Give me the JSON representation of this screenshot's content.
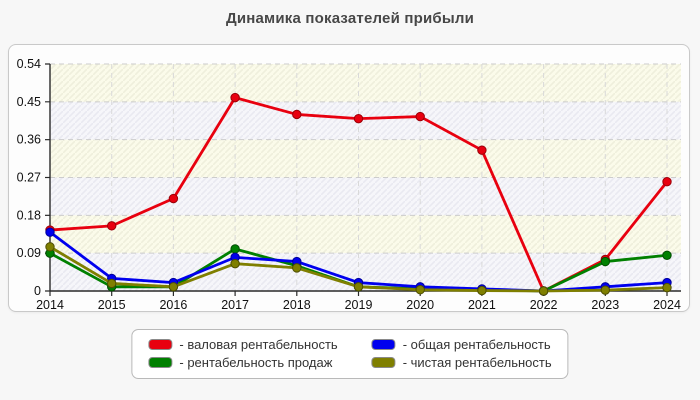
{
  "title": "Динамика показателей прибыли",
  "chart_data": {
    "type": "line",
    "x": [
      2014,
      2015,
      2016,
      2017,
      2018,
      2019,
      2020,
      2021,
      2022,
      2023,
      2024
    ],
    "series": [
      {
        "name": "валовая рентабельность",
        "color": "#e8000f",
        "marker_edge": "#9b0008",
        "values": [
          0.145,
          0.155,
          0.22,
          0.46,
          0.42,
          0.41,
          0.415,
          0.335,
          0.0,
          0.075,
          0.26
        ]
      },
      {
        "name": "рентабельность продаж",
        "color": "#008000",
        "marker_edge": "#004d00",
        "values": [
          0.09,
          0.01,
          0.01,
          0.1,
          0.06,
          0.01,
          0.005,
          0.003,
          0.0,
          0.07,
          0.085
        ]
      },
      {
        "name": "общая рентабельность",
        "color": "#0000ee",
        "marker_edge": "#000099",
        "values": [
          0.14,
          0.03,
          0.02,
          0.08,
          0.07,
          0.02,
          0.01,
          0.005,
          0.0,
          0.01,
          0.02
        ]
      },
      {
        "name": "чистая рентабельность",
        "color": "#7f7f00",
        "marker_edge": "#4d4d00",
        "values": [
          0.105,
          0.018,
          0.01,
          0.065,
          0.055,
          0.01,
          0.003,
          0.001,
          0.0,
          0.002,
          0.008
        ]
      }
    ],
    "title": "Динамика показателей прибыли",
    "xlabel": "",
    "ylabel": "",
    "ylim": [
      0,
      0.54
    ],
    "yticks": [
      0,
      0.09,
      0.18,
      0.27,
      0.36,
      0.45,
      0.54
    ],
    "ytick_labels": [
      "0",
      "0.09",
      "0.18",
      "0.27",
      "0.36",
      "0.45",
      "0.54"
    ],
    "xtick_labels": [
      "2014",
      "2015",
      "2016",
      "2017",
      "2018",
      "2019",
      "2020",
      "2021",
      "2022",
      "2023",
      "2024"
    ],
    "grid": true,
    "grid_style": "dashed",
    "legend_position": "bottom",
    "plot_band_colors": [
      "#fbfbea",
      "#f6f6fa"
    ],
    "plot_band_hatch_colors": [
      "#efefdc",
      "#e9e9f1"
    ]
  },
  "legend": {
    "items": [
      {
        "label": "- валовая рентабельность",
        "color": "#e8000f"
      },
      {
        "label": "- общая рентабельность",
        "color": "#0000ee"
      },
      {
        "label": "- рентабельность продаж",
        "color": "#008000"
      },
      {
        "label": "- чистая рентабельность",
        "color": "#7f7f00"
      }
    ]
  },
  "colors": {
    "page_background": "#f7f7f7",
    "panel_background": "#fdfdfd",
    "panel_border": "#c9c9c9",
    "gridline": "#cccccc",
    "axis": "#2a2a2a",
    "tick_text": "#111111",
    "title_text": "#474747"
  }
}
